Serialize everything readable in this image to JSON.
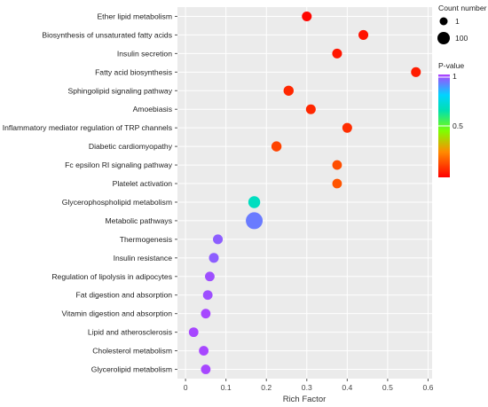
{
  "chart_data": {
    "type": "scatter",
    "xlabel": "Rich Factor",
    "ylabel": "",
    "xlim": [
      -0.02,
      0.61
    ],
    "xticks": [
      "0",
      "0.1",
      "0.2",
      "0.3",
      "0.4",
      "0.5",
      "0.6"
    ],
    "grid": true,
    "legend_position": "right",
    "categories": [
      "Ether lipid metabolism",
      "Biosynthesis of unsaturated fatty acids",
      "Insulin secretion",
      "Fatty acid biosynthesis",
      "Sphingolipid signaling pathway",
      "Amoebiasis",
      "Inflammatory mediator regulation of TRP channels",
      "Diabetic cardiomyopathy",
      "Fc epsilon RI signaling pathway",
      "Platelet activation",
      "Glycerophospholipid metabolism",
      "Metabolic pathways",
      "Thermogenesis",
      "Insulin resistance",
      "Regulation of lipolysis in adipocytes",
      "Fat digestion and absorption",
      "Vitamin digestion and absorption",
      "Lipid and atherosclerosis",
      "Cholesterol metabolism",
      "Glycerolipid metabolism"
    ],
    "points": [
      {
        "pathway": "Ether lipid metabolism",
        "rich_factor": 0.3,
        "count": 8,
        "p_value": 0.01
      },
      {
        "pathway": "Biosynthesis of unsaturated fatty acids",
        "rich_factor": 0.44,
        "count": 8,
        "p_value": 0.03
      },
      {
        "pathway": "Insulin secretion",
        "rich_factor": 0.375,
        "count": 8,
        "p_value": 0.04
      },
      {
        "pathway": "Fatty acid biosynthesis",
        "rich_factor": 0.57,
        "count": 8,
        "p_value": 0.05
      },
      {
        "pathway": "Sphingolipid signaling pathway",
        "rich_factor": 0.255,
        "count": 10,
        "p_value": 0.07
      },
      {
        "pathway": "Amoebiasis",
        "rich_factor": 0.31,
        "count": 8,
        "p_value": 0.07
      },
      {
        "pathway": "Inflammatory mediator regulation of TRP channels",
        "rich_factor": 0.4,
        "count": 8,
        "p_value": 0.08
      },
      {
        "pathway": "Diabetic cardiomyopathy",
        "rich_factor": 0.225,
        "count": 10,
        "p_value": 0.12
      },
      {
        "pathway": "Fc epsilon RI signaling pathway",
        "rich_factor": 0.375,
        "count": 7,
        "p_value": 0.14
      },
      {
        "pathway": "Platelet activation",
        "rich_factor": 0.375,
        "count": 7,
        "p_value": 0.15
      },
      {
        "pathway": "Glycerophospholipid metabolism",
        "rich_factor": 0.17,
        "count": 25,
        "p_value": 0.68
      },
      {
        "pathway": "Metabolic pathways",
        "rich_factor": 0.17,
        "count": 100,
        "p_value": 0.92
      },
      {
        "pathway": "Thermogenesis",
        "rich_factor": 0.08,
        "count": 8,
        "p_value": 0.96
      },
      {
        "pathway": "Insulin resistance",
        "rich_factor": 0.07,
        "count": 8,
        "p_value": 0.96
      },
      {
        "pathway": "Regulation of lipolysis in adipocytes",
        "rich_factor": 0.06,
        "count": 7,
        "p_value": 0.98
      },
      {
        "pathway": "Fat digestion and absorption",
        "rich_factor": 0.055,
        "count": 7,
        "p_value": 0.98
      },
      {
        "pathway": "Vitamin digestion and absorption",
        "rich_factor": 0.05,
        "count": 7,
        "p_value": 0.99
      },
      {
        "pathway": "Lipid and atherosclerosis",
        "rich_factor": 0.02,
        "count": 7,
        "p_value": 0.99
      },
      {
        "pathway": "Cholesterol metabolism",
        "rich_factor": 0.045,
        "count": 7,
        "p_value": 0.99
      },
      {
        "pathway": "Glycerolipid metabolism",
        "rich_factor": 0.05,
        "count": 7,
        "p_value": 0.99
      }
    ],
    "size_legend": {
      "title": "Count number",
      "entries": [
        {
          "label": "1",
          "count": 1
        },
        {
          "label": "100",
          "count": 100
        }
      ]
    },
    "color_legend": {
      "title": "P-value",
      "ticks": [
        {
          "label": "1",
          "value": 1.0
        },
        {
          "label": "0.5",
          "value": 0.5
        }
      ],
      "gradient": [
        "#ff0000",
        "#ff8c00",
        "#7fff00",
        "#00cfcf",
        "#00d4ff",
        "#b040ff"
      ]
    },
    "colors": {
      "panel_background": "#ebebeb",
      "grid_line": "#ffffff"
    }
  }
}
